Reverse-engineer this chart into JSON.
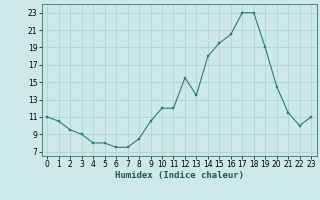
{
  "x": [
    0,
    1,
    2,
    3,
    4,
    5,
    6,
    7,
    8,
    9,
    10,
    11,
    12,
    13,
    14,
    15,
    16,
    17,
    18,
    19,
    20,
    21,
    22,
    23
  ],
  "y": [
    11,
    10.5,
    9.5,
    9,
    8,
    8,
    7.5,
    7.5,
    8.5,
    10.5,
    12,
    12,
    15.5,
    13.5,
    18,
    19.5,
    20.5,
    23,
    23,
    19,
    14.5,
    11.5,
    10,
    11
  ],
  "line_color": "#2e7d6e",
  "marker_color": "#2e7d6e",
  "bg_color": "#cce9e7",
  "grid_color": "#b0d4d1",
  "xlabel": "Humidex (Indice chaleur)",
  "yticks": [
    7,
    9,
    11,
    13,
    15,
    17,
    19,
    21,
    23
  ],
  "xticks": [
    0,
    1,
    2,
    3,
    4,
    5,
    6,
    7,
    8,
    9,
    10,
    11,
    12,
    13,
    14,
    15,
    16,
    17,
    18,
    19,
    20,
    21,
    22,
    23
  ],
  "ylim": [
    6.5,
    24
  ],
  "xlim": [
    -0.5,
    23.5
  ],
  "label_fontsize": 6.5,
  "tick_fontsize": 5.5
}
